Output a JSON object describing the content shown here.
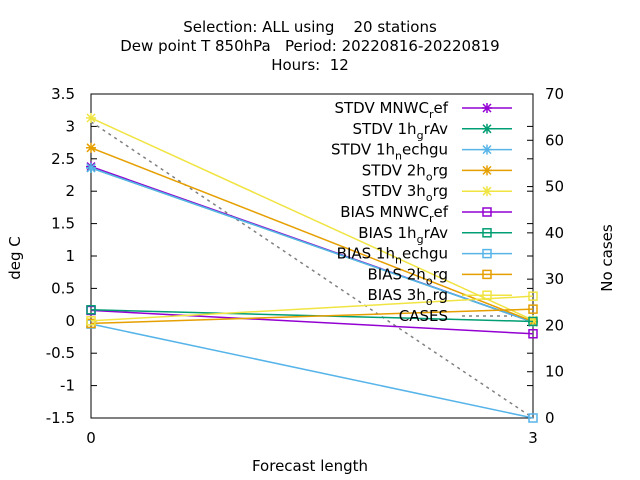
{
  "chart_data": {
    "type": "line",
    "title_lines": [
      "Selection: ALL using    20 stations",
      "Dew point T 850hPa   Period: 20220816-20220819",
      "Hours:  12"
    ],
    "xlabel": "Forecast length",
    "ylabel": "deg C",
    "y2label": "No cases",
    "x": [
      0,
      3
    ],
    "xticks": [
      0,
      3
    ],
    "xlim": [
      0,
      3
    ],
    "ylim": [
      -1.5,
      3.5
    ],
    "yticks": [
      "-1.5",
      "-1",
      "-0.5",
      "0",
      "0.5",
      "1",
      "1.5",
      "2",
      "2.5",
      "3",
      "3.5"
    ],
    "y2lim": [
      0,
      70
    ],
    "y2ticks": [
      "0",
      "10",
      "20",
      "30",
      "40",
      "50",
      "60",
      "70"
    ],
    "grid": false,
    "legend": "top-right",
    "series": [
      {
        "label_main": "STDV MNWC",
        "label_sub": "r",
        "label_tail": "ef",
        "color": "#9400d3",
        "marker": "x",
        "values": [
          2.38,
          -0.02
        ]
      },
      {
        "label_main": "STDV 1h",
        "label_sub": "g",
        "label_tail": "rAv",
        "color": "#009e73",
        "marker": "x",
        "values": [
          2.36,
          -0.02
        ]
      },
      {
        "label_main": "STDV 1h",
        "label_sub": "n",
        "label_tail": "echgu",
        "color": "#56b4e9",
        "marker": "x",
        "values": [
          2.36,
          -0.02
        ]
      },
      {
        "label_main": "STDV 2h",
        "label_sub": "o",
        "label_tail": "rg",
        "color": "#e69f00",
        "marker": "x",
        "values": [
          2.67,
          -0.01
        ]
      },
      {
        "label_main": "STDV 3h",
        "label_sub": "o",
        "label_tail": "rg",
        "color": "#f0e442",
        "marker": "x",
        "values": [
          3.13,
          0.01
        ]
      },
      {
        "label_main": "BIAS MNWC",
        "label_sub": "r",
        "label_tail": "ef",
        "color": "#9400d3",
        "marker": "square",
        "values": [
          0.16,
          -0.2
        ]
      },
      {
        "label_main": "BIAS 1h",
        "label_sub": "g",
        "label_tail": "rAv",
        "color": "#009e73",
        "marker": "square",
        "values": [
          0.17,
          -0.01
        ]
      },
      {
        "label_main": "BIAS 1h",
        "label_sub": "n",
        "label_tail": "echgu",
        "color": "#56b4e9",
        "marker": "square",
        "values": [
          -0.05,
          -1.5
        ]
      },
      {
        "label_main": "BIAS 2h",
        "label_sub": "o",
        "label_tail": "rg",
        "color": "#e69f00",
        "marker": "square",
        "values": [
          -0.04,
          0.18
        ]
      },
      {
        "label_main": "BIAS 3h",
        "label_sub": "o",
        "label_tail": "rg",
        "color": "#f0e442",
        "marker": "square",
        "values": [
          0.0,
          0.38
        ]
      }
    ],
    "cases": {
      "label": "CASES",
      "color": "#808080",
      "axis": "y2",
      "values": [
        64,
        0
      ]
    }
  }
}
